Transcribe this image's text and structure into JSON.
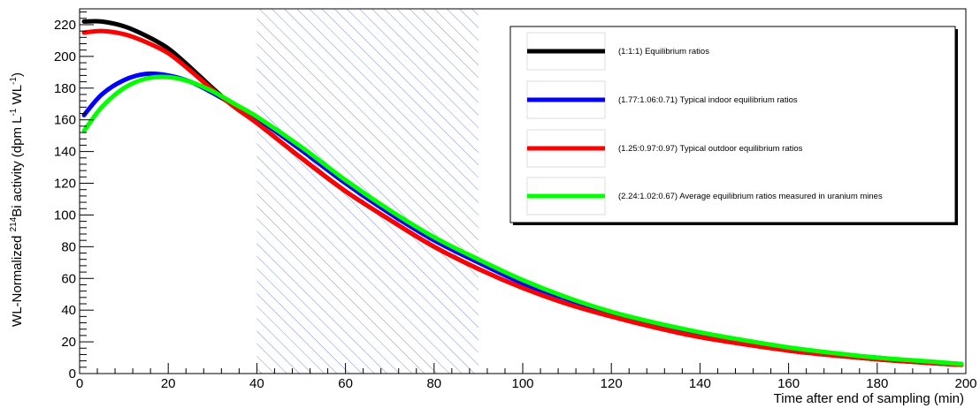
{
  "chart_data": {
    "type": "line",
    "xlabel": "Time after end of sampling (min)",
    "ylabel_parts": [
      "WL-Normalized ",
      "214",
      "Bi activity (dpm L",
      "-1",
      " WL",
      "-1",
      ")"
    ],
    "xlim": [
      0,
      200
    ],
    "ylim": [
      0,
      230
    ],
    "x_ticks": [
      0,
      20,
      40,
      60,
      80,
      100,
      120,
      140,
      160,
      180,
      200
    ],
    "y_ticks": [
      0,
      20,
      40,
      60,
      80,
      100,
      120,
      140,
      160,
      180,
      200,
      220
    ],
    "grid": false,
    "legend_position": "top-right",
    "shaded_region": {
      "x_start": 40,
      "x_end": 90,
      "pattern": "diagonal-hatch",
      "color": "#8090d0"
    },
    "series": [
      {
        "name": "(1:1:1) Equilibrium ratios",
        "color": "#000000",
        "x": [
          1,
          5,
          10,
          15,
          20,
          25,
          30,
          35,
          40,
          50,
          60,
          70,
          80,
          90,
          100,
          110,
          120,
          130,
          140,
          150,
          160,
          170,
          180,
          190,
          199
        ],
        "y": [
          222,
          222,
          219,
          213,
          205,
          193,
          180,
          168,
          158,
          136,
          115,
          97,
          80,
          66,
          54,
          44,
          36,
          29,
          23,
          18.5,
          14.5,
          11.5,
          9,
          7,
          5.5
        ]
      },
      {
        "name": "(1.77:1.06:0.71) Typical indoor equilibrium ratios",
        "color": "#0000ff",
        "x": [
          1,
          5,
          10,
          15,
          20,
          25,
          30,
          35,
          40,
          50,
          60,
          70,
          80,
          90,
          100,
          110,
          120,
          130,
          140,
          150,
          160,
          170,
          180,
          190,
          199
        ],
        "y": [
          163,
          176,
          185,
          189,
          188,
          184,
          177,
          169,
          161,
          141,
          120,
          101,
          84,
          70,
          57,
          47,
          38,
          31,
          25,
          20,
          16,
          12.5,
          10,
          7.5,
          6
        ]
      },
      {
        "name": "(1.25:0.97:0.97) Typical outdoor equilibrium ratios",
        "color": "#ff0000",
        "x": [
          1,
          5,
          10,
          15,
          20,
          25,
          30,
          35,
          40,
          50,
          60,
          70,
          80,
          90,
          100,
          110,
          120,
          130,
          140,
          150,
          160,
          170,
          180,
          190,
          199
        ],
        "y": [
          215,
          216,
          214,
          209,
          202,
          191,
          179,
          168,
          158,
          136,
          115,
          97,
          80,
          66,
          54,
          44,
          36,
          29,
          23,
          18.5,
          14.5,
          11.5,
          9,
          7,
          5.5
        ]
      },
      {
        "name": "(2.24:1.02:0.67) Average equilibrium ratios measured in uranium mines",
        "color": "#00ff00",
        "x": [
          1,
          5,
          10,
          15,
          20,
          25,
          30,
          35,
          40,
          50,
          60,
          70,
          80,
          90,
          100,
          110,
          120,
          130,
          140,
          150,
          160,
          170,
          180,
          190,
          199
        ],
        "y": [
          153,
          168,
          180,
          186,
          187,
          184,
          178,
          170,
          162,
          143,
          122,
          103,
          86,
          72,
          59,
          48,
          39,
          32,
          26,
          21,
          16.5,
          13,
          10,
          8,
          6
        ]
      }
    ]
  }
}
